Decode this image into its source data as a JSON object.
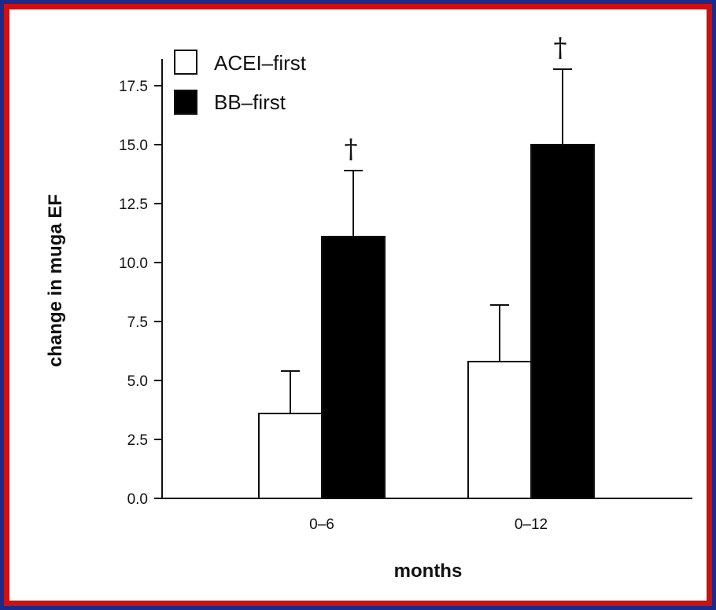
{
  "chart_data": {
    "type": "bar",
    "title": "",
    "xlabel": "months",
    "ylabel": "change in muga EF",
    "categories": [
      "0-6",
      "0-12"
    ],
    "series": [
      {
        "name": "ACEI–first",
        "values": [
          3.6,
          5.8
        ],
        "error": [
          1.8,
          2.4
        ],
        "color": "#ffffff"
      },
      {
        "name": "BB–first",
        "values": [
          11.1,
          15.0
        ],
        "error": [
          2.8,
          3.2
        ],
        "color": "#000000"
      }
    ],
    "annotations": [
      "†",
      "†"
    ],
    "ylim": [
      0,
      18.5
    ],
    "yticks": [
      "0.0",
      "2.5",
      "5.0",
      "7.5",
      "10.0",
      "12.5",
      "15.0",
      "17.5"
    ],
    "xtick_labels": [
      "0–6",
      "0–12"
    ],
    "legend_position": "top-left",
    "grid": false
  },
  "colors": {
    "outer": "#1c2a8c",
    "border": "#cc1111",
    "background": "#ffffff"
  }
}
